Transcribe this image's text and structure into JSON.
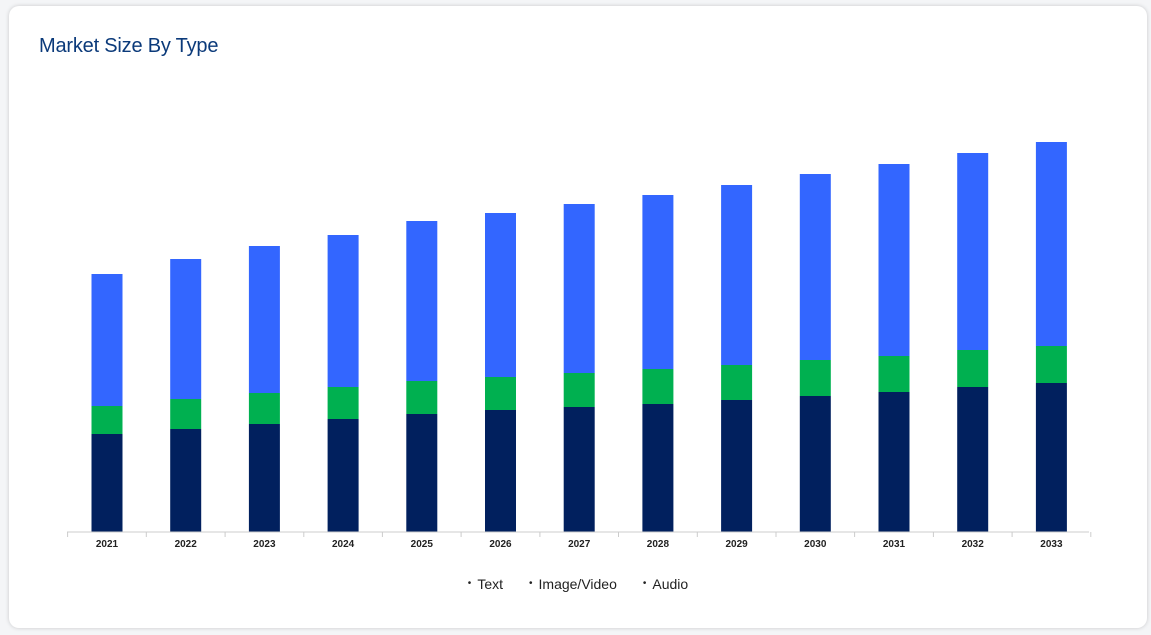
{
  "card": {
    "title": "Market Size By Type"
  },
  "colors": {
    "Text": "#01205e",
    "Image/Video": "#00b050",
    "Audio": "#3366ff",
    "axis": "#cccccc",
    "title": "#0b3a7a"
  },
  "legend": {
    "items": [
      {
        "label": "Text",
        "marker": "•"
      },
      {
        "label": "Image/Video",
        "marker": "•"
      },
      {
        "label": "Audio",
        "marker": "•"
      }
    ]
  },
  "chart_data": {
    "type": "bar",
    "stacked": true,
    "title": "Market Size By Type",
    "xlabel": "",
    "ylabel": "",
    "categories": [
      "2021",
      "2022",
      "2023",
      "2024",
      "2025",
      "2026",
      "2027",
      "2028",
      "2029",
      "2030",
      "2031",
      "2032",
      "2033"
    ],
    "series": [
      {
        "name": "Text",
        "values": [
          98,
          103,
          108,
          113,
          118,
          122,
          125,
          128,
          132,
          136,
          140,
          145,
          149
        ]
      },
      {
        "name": "Image/Video",
        "values": [
          28,
          30,
          31,
          32,
          33,
          33,
          34,
          35,
          35,
          36,
          36,
          37,
          37
        ]
      },
      {
        "name": "Audio",
        "values": [
          132,
          140,
          147,
          152,
          160,
          164,
          169,
          174,
          180,
          186,
          192,
          197,
          204
        ]
      }
    ],
    "ylim": [
      0,
      400
    ],
    "grid": false,
    "legend_position": "bottom-center"
  }
}
